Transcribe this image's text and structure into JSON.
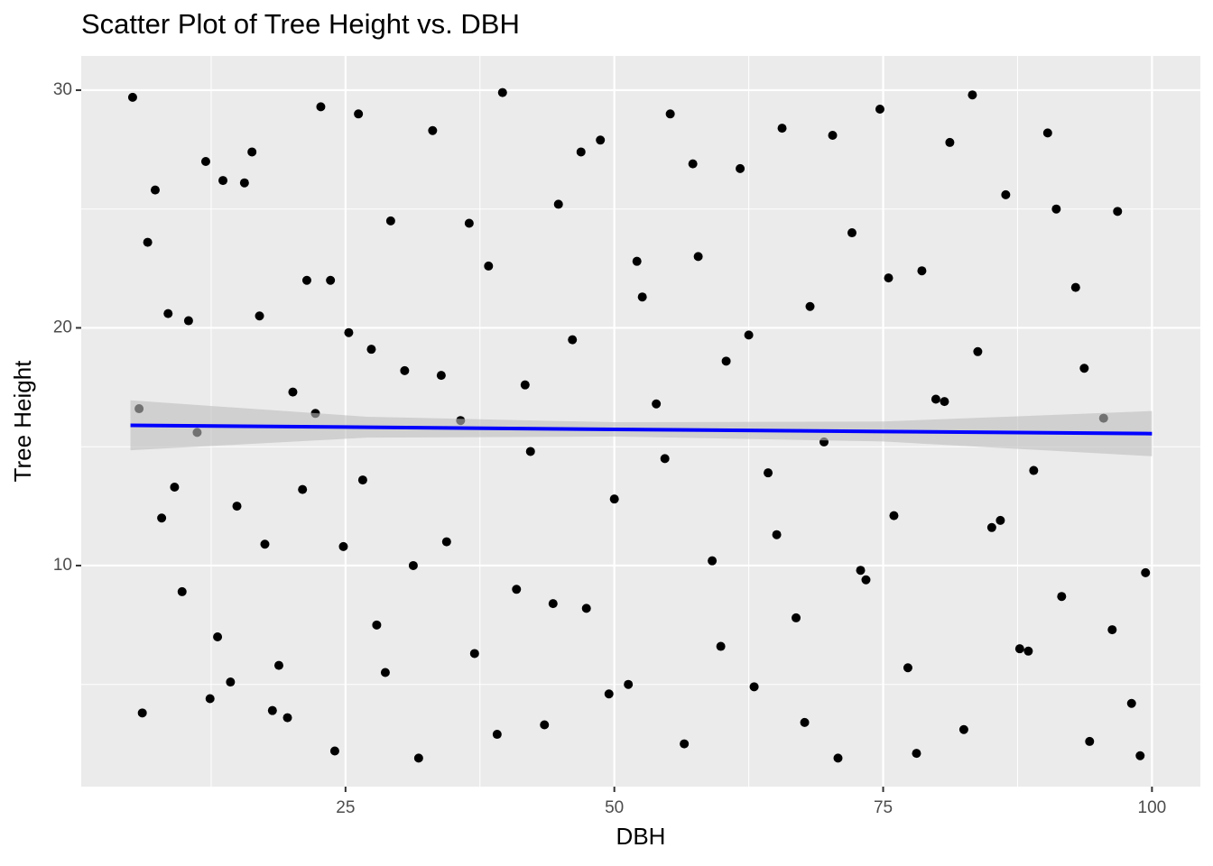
{
  "chart_data": {
    "type": "scatter",
    "title": "Scatter Plot of Tree Height vs. DBH",
    "x_label": "DBH",
    "y_label": "Tree Height",
    "xlim": [
      0.42,
      104.5
    ],
    "ylim": [
      0.7,
      31.44
    ],
    "xticks": [
      25,
      50,
      75,
      100
    ],
    "yticks": [
      10,
      20,
      30
    ],
    "minor_xticks": [
      12.5,
      37.5,
      62.5,
      87.5
    ],
    "minor_yticks": [
      5,
      15,
      25
    ],
    "grid": true,
    "color": "#000000",
    "x": [
      5.2,
      6.1,
      7.3,
      8.5,
      9.8,
      11.2,
      12.4,
      13.6,
      14.9,
      16.3,
      17.5,
      18.8,
      20.1,
      21.4,
      22.7,
      24.0,
      25.3,
      26.6,
      27.9,
      29.2,
      30.5,
      31.8,
      33.1,
      34.4,
      35.7,
      37.0,
      38.3,
      39.6,
      40.9,
      42.2,
      43.5,
      44.8,
      46.1,
      47.4,
      48.7,
      50.0,
      51.3,
      52.6,
      53.9,
      55.2,
      56.5,
      57.8,
      59.1,
      60.4,
      61.7,
      63.0,
      64.3,
      65.6,
      66.9,
      68.2,
      69.5,
      70.8,
      72.1,
      73.4,
      74.7,
      76.0,
      77.3,
      78.6,
      79.9,
      81.2,
      82.5,
      83.8,
      85.1,
      86.4,
      87.7,
      89.0,
      90.3,
      91.6,
      92.9,
      94.2,
      95.5,
      96.8,
      98.1,
      99.4,
      5.8,
      7.9,
      10.4,
      13.1,
      15.6,
      18.2,
      21.0,
      23.6,
      26.2,
      28.7,
      31.3,
      33.9,
      36.5,
      39.1,
      41.7,
      44.3,
      46.9,
      49.5,
      52.1,
      54.7,
      57.3,
      59.9,
      62.5,
      65.1,
      67.7,
      70.3,
      72.9,
      75.5,
      78.1,
      80.7,
      83.3,
      85.9,
      88.5,
      91.1,
      93.7,
      96.3,
      98.9,
      6.6,
      9.1,
      12.0,
      14.3,
      17.0,
      19.6,
      22.2,
      24.8,
      27.4
    ],
    "values": [
      29.7,
      3.8,
      25.8,
      20.6,
      8.9,
      15.6,
      4.4,
      26.2,
      12.5,
      27.4,
      10.9,
      5.8,
      17.3,
      22.0,
      29.3,
      2.2,
      19.8,
      13.6,
      7.5,
      24.5,
      18.2,
      1.9,
      28.3,
      11.0,
      16.1,
      6.3,
      22.6,
      29.9,
      9.0,
      14.8,
      3.3,
      25.2,
      19.5,
      8.2,
      27.9,
      12.8,
      5.0,
      21.3,
      16.8,
      29.0,
      2.5,
      23.0,
      10.2,
      18.6,
      26.7,
      4.9,
      13.9,
      28.4,
      7.8,
      20.9,
      15.2,
      1.9,
      24.0,
      9.4,
      29.2,
      12.1,
      5.7,
      22.4,
      17.0,
      27.8,
      3.1,
      19.0,
      11.6,
      25.6,
      6.5,
      14.0,
      28.2,
      8.7,
      21.7,
      2.6,
      16.2,
      24.9,
      4.2,
      9.7,
      16.6,
      12.0,
      20.3,
      7.0,
      26.1,
      3.9,
      13.2,
      22.0,
      29.0,
      5.5,
      10.0,
      18.0,
      24.4,
      2.9,
      17.6,
      8.4,
      27.4,
      4.6,
      22.8,
      14.5,
      26.9,
      6.6,
      19.7,
      11.3,
      3.4,
      28.1,
      9.8,
      22.1,
      2.1,
      16.9,
      29.8,
      11.9,
      6.4,
      25.0,
      18.3,
      7.3,
      2.0,
      23.6,
      13.3,
      27.0,
      5.1,
      20.5,
      3.6,
      16.4,
      10.8,
      19.1
    ],
    "fit": {
      "color": "#0000ff",
      "band_color": "#bebebe",
      "x": [
        5,
        27,
        50,
        75,
        100
      ],
      "y": [
        15.9,
        15.82,
        15.73,
        15.64,
        15.55
      ],
      "lower": [
        14.85,
        15.38,
        15.43,
        15.22,
        14.6
      ],
      "upper": [
        16.95,
        16.26,
        16.03,
        16.06,
        16.5
      ]
    }
  }
}
